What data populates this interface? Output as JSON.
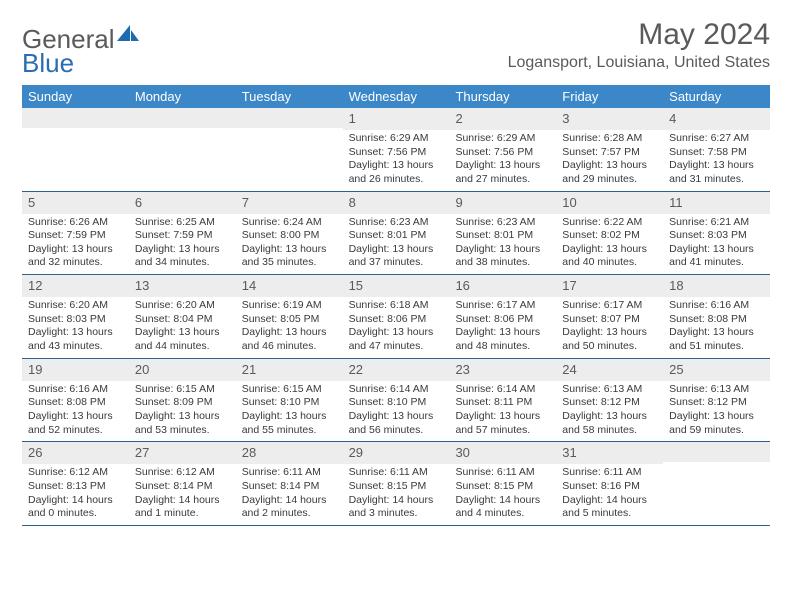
{
  "brand": {
    "part1": "General",
    "part2": "Blue"
  },
  "title": "May 2024",
  "location": "Logansport, Louisiana, United States",
  "colors": {
    "header_bg": "#3b87c8",
    "header_text": "#ffffff",
    "daynum_bg": "#ededed",
    "text": "#5a5a5a",
    "week_divider": "#2d5f8f"
  },
  "day_headers": [
    "Sunday",
    "Monday",
    "Tuesday",
    "Wednesday",
    "Thursday",
    "Friday",
    "Saturday"
  ],
  "weeks": [
    [
      {
        "n": "",
        "sr": "",
        "ss": "",
        "dl": ""
      },
      {
        "n": "",
        "sr": "",
        "ss": "",
        "dl": ""
      },
      {
        "n": "",
        "sr": "",
        "ss": "",
        "dl": ""
      },
      {
        "n": "1",
        "sr": "Sunrise: 6:29 AM",
        "ss": "Sunset: 7:56 PM",
        "dl": "Daylight: 13 hours and 26 minutes."
      },
      {
        "n": "2",
        "sr": "Sunrise: 6:29 AM",
        "ss": "Sunset: 7:56 PM",
        "dl": "Daylight: 13 hours and 27 minutes."
      },
      {
        "n": "3",
        "sr": "Sunrise: 6:28 AM",
        "ss": "Sunset: 7:57 PM",
        "dl": "Daylight: 13 hours and 29 minutes."
      },
      {
        "n": "4",
        "sr": "Sunrise: 6:27 AM",
        "ss": "Sunset: 7:58 PM",
        "dl": "Daylight: 13 hours and 31 minutes."
      }
    ],
    [
      {
        "n": "5",
        "sr": "Sunrise: 6:26 AM",
        "ss": "Sunset: 7:59 PM",
        "dl": "Daylight: 13 hours and 32 minutes."
      },
      {
        "n": "6",
        "sr": "Sunrise: 6:25 AM",
        "ss": "Sunset: 7:59 PM",
        "dl": "Daylight: 13 hours and 34 minutes."
      },
      {
        "n": "7",
        "sr": "Sunrise: 6:24 AM",
        "ss": "Sunset: 8:00 PM",
        "dl": "Daylight: 13 hours and 35 minutes."
      },
      {
        "n": "8",
        "sr": "Sunrise: 6:23 AM",
        "ss": "Sunset: 8:01 PM",
        "dl": "Daylight: 13 hours and 37 minutes."
      },
      {
        "n": "9",
        "sr": "Sunrise: 6:23 AM",
        "ss": "Sunset: 8:01 PM",
        "dl": "Daylight: 13 hours and 38 minutes."
      },
      {
        "n": "10",
        "sr": "Sunrise: 6:22 AM",
        "ss": "Sunset: 8:02 PM",
        "dl": "Daylight: 13 hours and 40 minutes."
      },
      {
        "n": "11",
        "sr": "Sunrise: 6:21 AM",
        "ss": "Sunset: 8:03 PM",
        "dl": "Daylight: 13 hours and 41 minutes."
      }
    ],
    [
      {
        "n": "12",
        "sr": "Sunrise: 6:20 AM",
        "ss": "Sunset: 8:03 PM",
        "dl": "Daylight: 13 hours and 43 minutes."
      },
      {
        "n": "13",
        "sr": "Sunrise: 6:20 AM",
        "ss": "Sunset: 8:04 PM",
        "dl": "Daylight: 13 hours and 44 minutes."
      },
      {
        "n": "14",
        "sr": "Sunrise: 6:19 AM",
        "ss": "Sunset: 8:05 PM",
        "dl": "Daylight: 13 hours and 46 minutes."
      },
      {
        "n": "15",
        "sr": "Sunrise: 6:18 AM",
        "ss": "Sunset: 8:06 PM",
        "dl": "Daylight: 13 hours and 47 minutes."
      },
      {
        "n": "16",
        "sr": "Sunrise: 6:17 AM",
        "ss": "Sunset: 8:06 PM",
        "dl": "Daylight: 13 hours and 48 minutes."
      },
      {
        "n": "17",
        "sr": "Sunrise: 6:17 AM",
        "ss": "Sunset: 8:07 PM",
        "dl": "Daylight: 13 hours and 50 minutes."
      },
      {
        "n": "18",
        "sr": "Sunrise: 6:16 AM",
        "ss": "Sunset: 8:08 PM",
        "dl": "Daylight: 13 hours and 51 minutes."
      }
    ],
    [
      {
        "n": "19",
        "sr": "Sunrise: 6:16 AM",
        "ss": "Sunset: 8:08 PM",
        "dl": "Daylight: 13 hours and 52 minutes."
      },
      {
        "n": "20",
        "sr": "Sunrise: 6:15 AM",
        "ss": "Sunset: 8:09 PM",
        "dl": "Daylight: 13 hours and 53 minutes."
      },
      {
        "n": "21",
        "sr": "Sunrise: 6:15 AM",
        "ss": "Sunset: 8:10 PM",
        "dl": "Daylight: 13 hours and 55 minutes."
      },
      {
        "n": "22",
        "sr": "Sunrise: 6:14 AM",
        "ss": "Sunset: 8:10 PM",
        "dl": "Daylight: 13 hours and 56 minutes."
      },
      {
        "n": "23",
        "sr": "Sunrise: 6:14 AM",
        "ss": "Sunset: 8:11 PM",
        "dl": "Daylight: 13 hours and 57 minutes."
      },
      {
        "n": "24",
        "sr": "Sunrise: 6:13 AM",
        "ss": "Sunset: 8:12 PM",
        "dl": "Daylight: 13 hours and 58 minutes."
      },
      {
        "n": "25",
        "sr": "Sunrise: 6:13 AM",
        "ss": "Sunset: 8:12 PM",
        "dl": "Daylight: 13 hours and 59 minutes."
      }
    ],
    [
      {
        "n": "26",
        "sr": "Sunrise: 6:12 AM",
        "ss": "Sunset: 8:13 PM",
        "dl": "Daylight: 14 hours and 0 minutes."
      },
      {
        "n": "27",
        "sr": "Sunrise: 6:12 AM",
        "ss": "Sunset: 8:14 PM",
        "dl": "Daylight: 14 hours and 1 minute."
      },
      {
        "n": "28",
        "sr": "Sunrise: 6:11 AM",
        "ss": "Sunset: 8:14 PM",
        "dl": "Daylight: 14 hours and 2 minutes."
      },
      {
        "n": "29",
        "sr": "Sunrise: 6:11 AM",
        "ss": "Sunset: 8:15 PM",
        "dl": "Daylight: 14 hours and 3 minutes."
      },
      {
        "n": "30",
        "sr": "Sunrise: 6:11 AM",
        "ss": "Sunset: 8:15 PM",
        "dl": "Daylight: 14 hours and 4 minutes."
      },
      {
        "n": "31",
        "sr": "Sunrise: 6:11 AM",
        "ss": "Sunset: 8:16 PM",
        "dl": "Daylight: 14 hours and 5 minutes."
      },
      {
        "n": "",
        "sr": "",
        "ss": "",
        "dl": ""
      }
    ]
  ]
}
